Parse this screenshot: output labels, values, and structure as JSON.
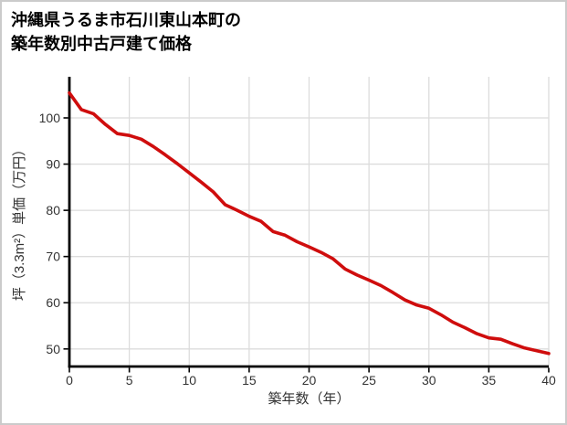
{
  "header": {
    "title_line1": "沖縄県うるま市石川東山本町の",
    "title_line2": "築年数別中古戸建て価格"
  },
  "chart_data": {
    "type": "line",
    "title": "沖縄県うるま市石川東山本町の築年数別中古戸建て価格",
    "xlabel": "築年数（年）",
    "ylabel": "坪（3.3m²）単価（万円）",
    "x": [
      0,
      1,
      2,
      3,
      4,
      5,
      6,
      7,
      8,
      9,
      10,
      11,
      12,
      13,
      14,
      15,
      16,
      17,
      18,
      19,
      20,
      21,
      22,
      23,
      24,
      25,
      26,
      27,
      28,
      29,
      30,
      31,
      32,
      33,
      34,
      35,
      36,
      37,
      38,
      39,
      40
    ],
    "values": [
      105.4,
      101.8,
      100.9,
      98.6,
      96.6,
      96.2,
      95.4,
      93.8,
      92.0,
      90.1,
      88.1,
      86.1,
      84.0,
      81.2,
      80.0,
      78.7,
      77.6,
      75.4,
      74.6,
      73.2,
      72.1,
      70.9,
      69.5,
      67.3,
      66.0,
      64.9,
      63.7,
      62.2,
      60.6,
      59.5,
      58.8,
      57.4,
      55.8,
      54.6,
      53.3,
      52.4,
      52.1,
      51.1,
      50.2,
      49.6,
      49.0
    ],
    "x_ticks": [
      0,
      5,
      10,
      15,
      20,
      25,
      30,
      35,
      40
    ],
    "y_ticks": [
      50,
      60,
      70,
      80,
      90,
      100
    ],
    "xlim": [
      0,
      40
    ],
    "ylim": [
      46.2,
      108.9
    ],
    "grid": true,
    "legend_position": "none",
    "line_color": "#cf0d0d",
    "axis_color": "#000000",
    "grid_color": "#dcdcdc",
    "tick_label_color": "#333333",
    "axis_label_color": "#333333",
    "background_color": "#ffffff",
    "border_color": "#cbcbcb"
  }
}
